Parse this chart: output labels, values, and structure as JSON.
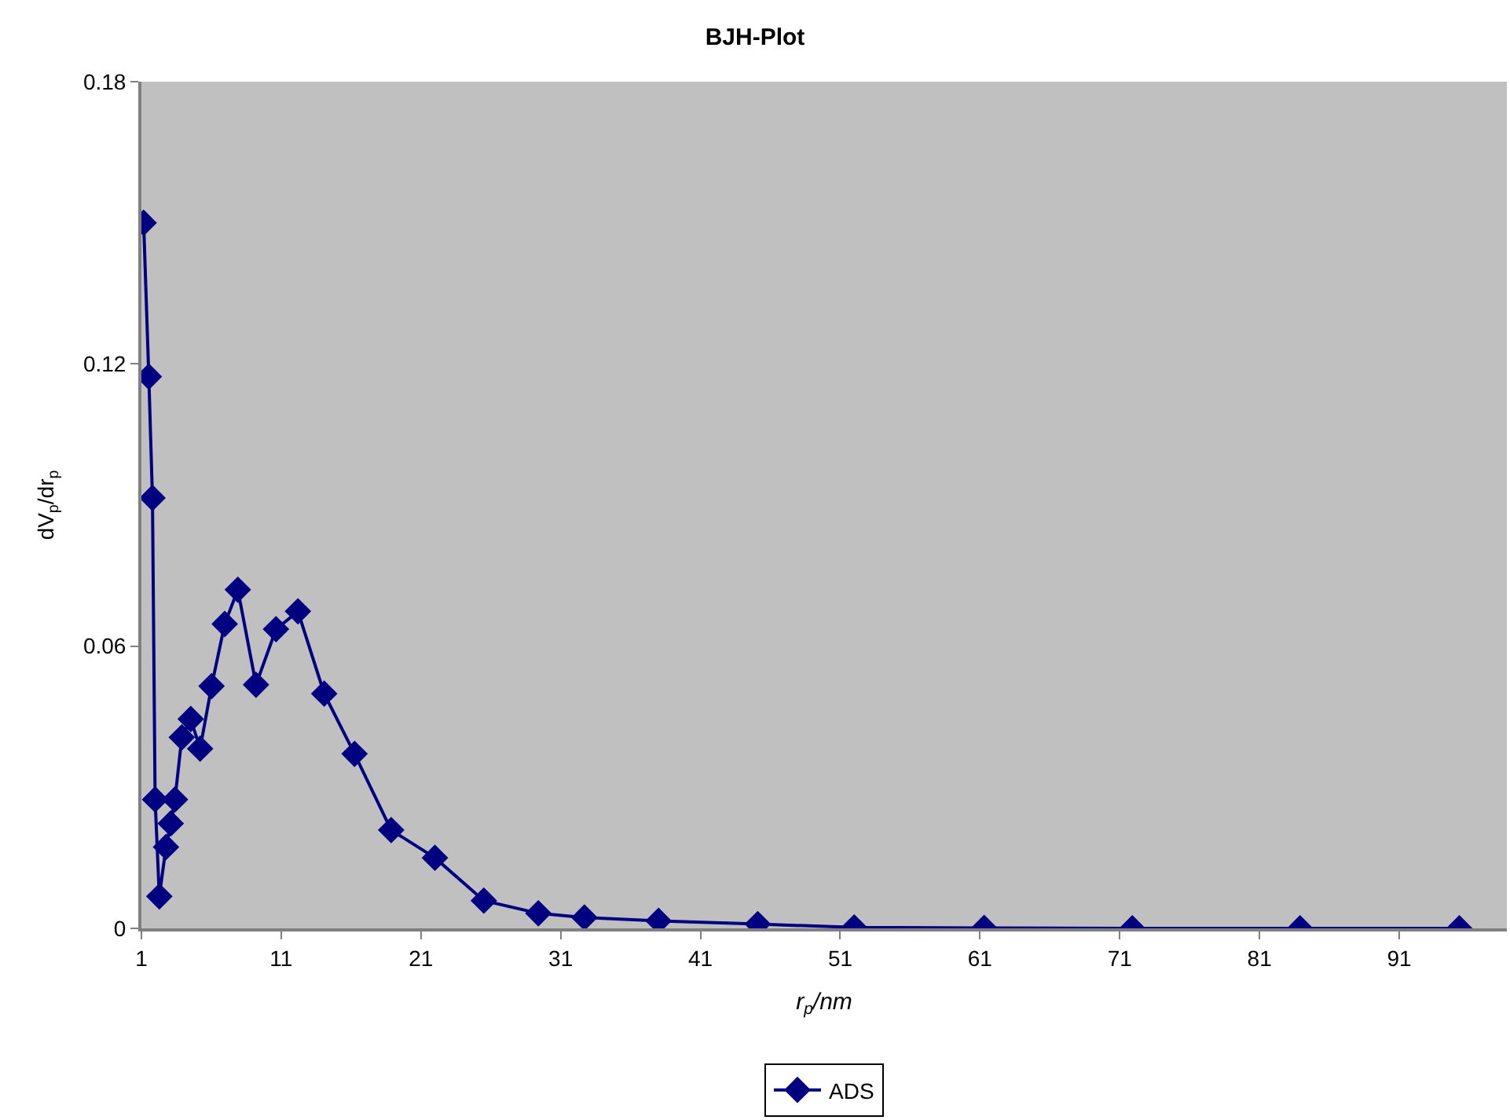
{
  "chart_data": {
    "type": "line",
    "title": "BJH-Plot",
    "xlabel": "r$_{p}$/nm",
    "ylabel": "dV$_{p}$/dr$_{p}$",
    "xlim": [
      1,
      98.7
    ],
    "xticks": [
      1,
      11,
      21,
      31,
      41,
      51,
      61,
      71,
      81,
      91
    ],
    "ylim": [
      0,
      0.18
    ],
    "yticks": [
      0,
      0.06,
      0.12,
      0.18
    ],
    "grid": false,
    "legend": "bottom",
    "marker": "diamond",
    "line_style": "solid",
    "series": [
      {
        "name": "ADS",
        "color": "#000080",
        "x": [
          1.16,
          1.53,
          1.79,
          1.98,
          2.28,
          2.76,
          3.1,
          3.4,
          3.89,
          4.53,
          5.2,
          6.02,
          6.96,
          7.9,
          9.2,
          10.63,
          12.2,
          14.08,
          16.25,
          18.87,
          22.0,
          25.5,
          29.4,
          32.7,
          38.0,
          45.1,
          52.0,
          61.3,
          71.9,
          83.9,
          95.3
        ],
        "values": [
          0.15,
          0.1173,
          0.0915,
          0.0274,
          0.0068,
          0.0173,
          0.0223,
          0.0274,
          0.0406,
          0.0445,
          0.0382,
          0.0515,
          0.0647,
          0.072,
          0.0518,
          0.0636,
          0.0674,
          0.0499,
          0.0371,
          0.0209,
          0.015,
          0.0059,
          0.0032,
          0.0023,
          0.0016,
          0.0009,
          0.0002,
          0.0001,
          0,
          0,
          0
        ]
      }
    ]
  }
}
